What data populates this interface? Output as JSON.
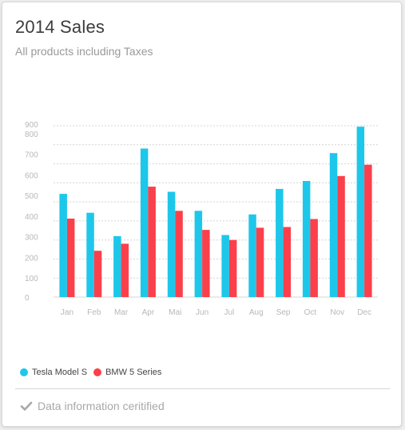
{
  "card": {
    "title": "2014 Sales",
    "subtitle": "All products including Taxes",
    "footer_text": "Data information ceritified",
    "footer_icon": "check-icon"
  },
  "colors": {
    "tesla": "#1dc7ea",
    "bmw": "#fb404b",
    "grid": "#d4d4d4",
    "tick": "#b8b8b8"
  },
  "chart_data": {
    "type": "bar",
    "title": "2014 Sales",
    "subtitle": "All products including Taxes",
    "categories": [
      "Jan",
      "Feb",
      "Mar",
      "Apr",
      "Mai",
      "Jun",
      "Jul",
      "Aug",
      "Sep",
      "Oct",
      "Nov",
      "Dec"
    ],
    "y_ticks": [
      0,
      100,
      200,
      300,
      400,
      500,
      600,
      700,
      800,
      900
    ],
    "ylim": [
      0,
      900
    ],
    "grid": true,
    "legend_position": "bottom-left",
    "series": [
      {
        "name": "Tesla Model S",
        "color": "#1dc7ea",
        "values": [
          542,
          443,
          320,
          780,
          553,
          453,
          326,
          434,
          568,
          610,
          756,
          895
        ]
      },
      {
        "name": "BMW 5 Series",
        "color": "#fb404b",
        "values": [
          412,
          243,
          280,
          580,
          453,
          353,
          300,
          364,
          368,
          410,
          636,
          695
        ]
      }
    ]
  }
}
